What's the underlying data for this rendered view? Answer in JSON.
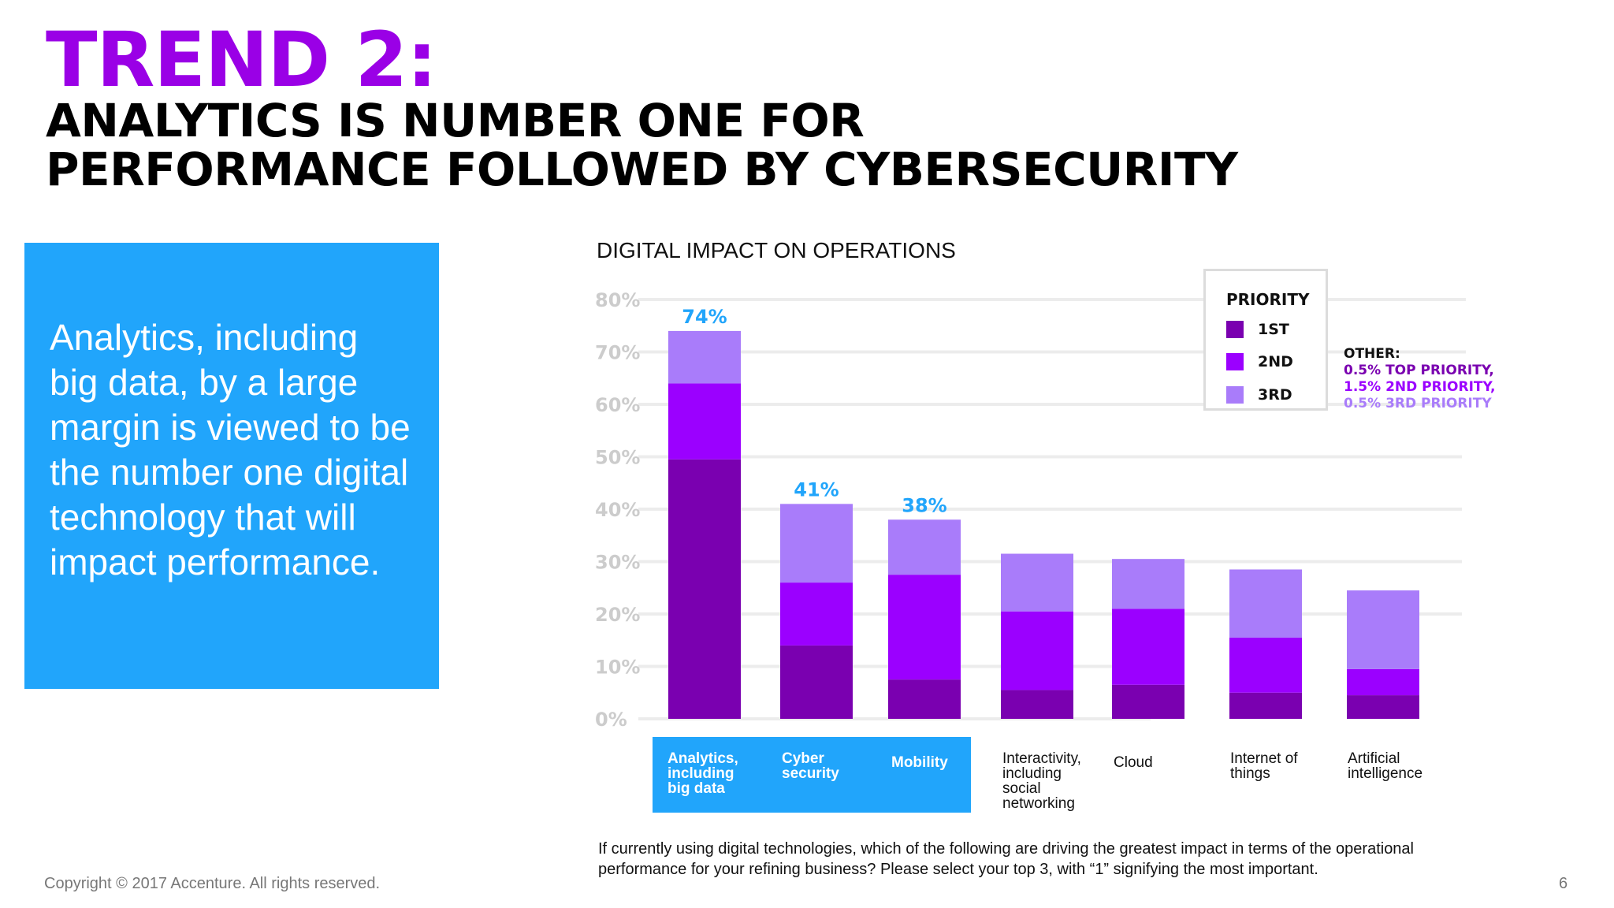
{
  "slide": {
    "trend_title": "TREND 2:",
    "headline_line1": "ANALYTICS IS NUMBER ONE FOR",
    "headline_line2": "PERFORMANCE FOLLOWED BY CYBERSECURITY",
    "callout_text": "Analytics, including big data, by a large margin is viewed to be the number one digital technology that will impact performance.",
    "question_text": "If currently using digital technologies, which of the following are driving the greatest impact in terms of the operational performance for your refining business? Please select your top 3, with “1” signifying the most important.",
    "copyright": "Copyright © 2017 Accenture. All rights reserved.",
    "page_number": "6"
  },
  "legend": {
    "title": "PRIORITY",
    "items": [
      {
        "label": "1ST",
        "color": "#7a00b0"
      },
      {
        "label": "2ND",
        "color": "#9b00ff"
      },
      {
        "label": "3RD",
        "color": "#a97cfa"
      }
    ]
  },
  "other": {
    "title": "OTHER:",
    "lines": [
      {
        "text": "0.5% TOP PRIORITY,",
        "color": "#7a00b0"
      },
      {
        "text": "1.5% 2ND PRIORITY,",
        "color": "#9b00ff"
      },
      {
        "text": "0.5% 3RD PRIORITY",
        "color": "#a97cfa"
      }
    ]
  },
  "chart_data": {
    "type": "bar",
    "stacked": true,
    "title": "DIGITAL IMPACT ON OPERATIONS",
    "categories": [
      "Analytics,\nincluding\nbig data",
      "Cyber\nsecurity",
      "Mobility",
      "Interactivity,\nincluding\nsocial\nnetworking",
      "Cloud",
      "Internet of\nthings",
      "Artificial\nintelligence"
    ],
    "highlighted_categories": [
      0,
      1,
      2
    ],
    "series": [
      {
        "name": "1ST",
        "color": "#7a00b0",
        "values": [
          49.5,
          14,
          7.5,
          5.5,
          6.5,
          5,
          4.5
        ]
      },
      {
        "name": "2ND",
        "color": "#9b00ff",
        "values": [
          14.5,
          12,
          20,
          15,
          14.5,
          10.5,
          5
        ]
      },
      {
        "name": "3RD",
        "color": "#a97cfa",
        "values": [
          10,
          15,
          10.5,
          11,
          9.5,
          13,
          15
        ]
      }
    ],
    "total_labels": [
      "74%",
      "41%",
      "38%",
      "",
      "",
      "",
      ""
    ],
    "y_ticks": [
      "0%",
      "10%",
      "20%",
      "30%",
      "40%",
      "50%",
      "60%",
      "70%",
      "80%"
    ],
    "ylim": [
      0,
      80
    ],
    "grid": true,
    "legend_position": "top-right",
    "colors": {
      "highlight": "#21a5fb",
      "tick": "#cccccc",
      "grid": "#ececec"
    }
  }
}
